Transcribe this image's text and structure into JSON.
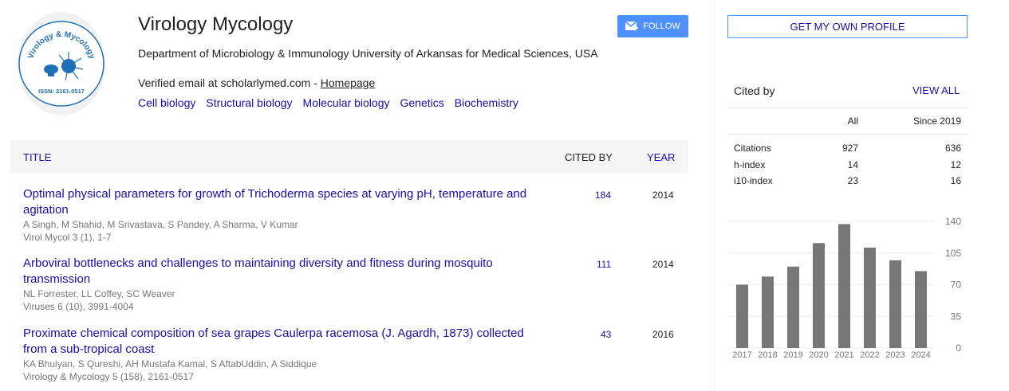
{
  "profile": {
    "name": "Virology Mycology",
    "affiliation": "Department of Microbiology & Immunology University of Arkansas for Medical Sciences, USA",
    "email": "Verified email at scholarlymed.com - ",
    "homepage": "Homepage",
    "interests": [
      "Cell biology",
      "Structural biology",
      "Molecular biology",
      "Genetics",
      "Biochemistry"
    ],
    "logo_text": "Virology & Mycology",
    "logo_issn": "ISSN: 2161-0517"
  },
  "follow_label": "FOLLOW",
  "table": {
    "headers": {
      "title": "TITLE",
      "cited_by": "CITED BY",
      "year": "YEAR"
    },
    "rows": [
      {
        "title": "Optimal physical parameters for growth of Trichoderma species at varying pH, temperature and agitation",
        "authors": "A Singh, M Shahid, M Srivastava, S Pandey, A Sharma, V Kumar",
        "venue": "Virol Mycol 3 (1), 1-7",
        "cited": "184",
        "year": "2014"
      },
      {
        "title": "Arboviral bottlenecks and challenges to maintaining diversity and fitness during mosquito transmission",
        "authors": "NL Forrester, LL Coffey, SC Weaver",
        "venue": "Viruses 6 (10), 3991-4004",
        "cited": "111",
        "year": "2014"
      },
      {
        "title": "Proximate chemical composition of sea grapes Caulerpa racemosa (J. Agardh, 1873) collected from a sub-tropical coast",
        "authors": "KA Bhuiyan, S Qureshi, AH Mustafa Kamal, S AftabUddin, A Siddique",
        "venue": "Virology & Mycology 5 (158), 2161-0517",
        "cited": "43",
        "year": "2016"
      }
    ]
  },
  "sidebar": {
    "get_profile": "GET MY OWN PROFILE",
    "cited_by": "Cited by",
    "view_all": "VIEW ALL",
    "cols": [
      "All",
      "Since 2019"
    ],
    "stats": [
      {
        "label": "Citations",
        "all": "927",
        "since": "636"
      },
      {
        "label": "h-index",
        "all": "14",
        "since": "12"
      },
      {
        "label": "i10-index",
        "all": "23",
        "since": "16"
      }
    ]
  },
  "chart_data": {
    "type": "bar",
    "categories": [
      "2017",
      "2018",
      "2019",
      "2020",
      "2021",
      "2022",
      "2023",
      "2024"
    ],
    "values": [
      70,
      79,
      90,
      116,
      137,
      111,
      97,
      85
    ],
    "yticks": [
      "0",
      "35",
      "70",
      "105",
      "140"
    ],
    "ylim": [
      0,
      140
    ],
    "grid": true,
    "color": "#777777"
  }
}
